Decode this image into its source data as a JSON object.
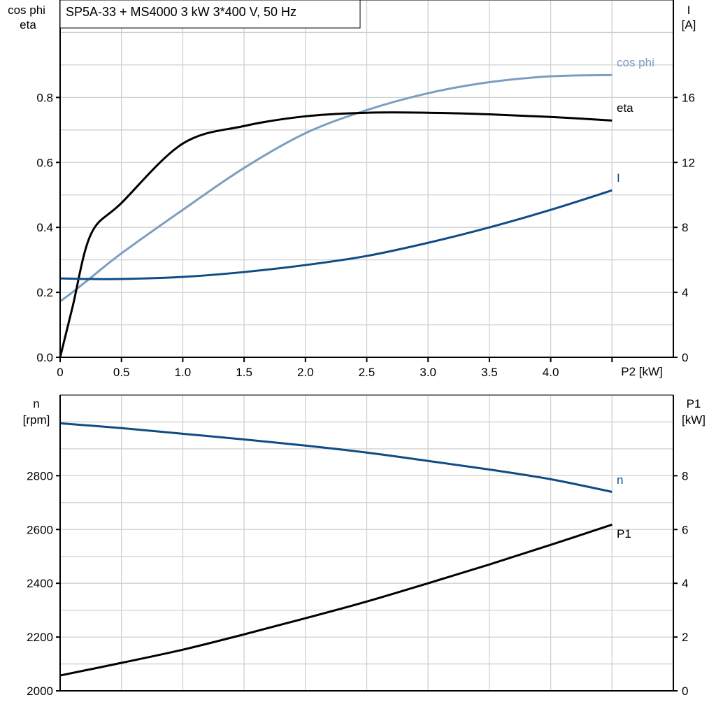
{
  "title": "SP5A-33 + MS4000   3 kW   3*400 V, 50 Hz",
  "chart_data": [
    {
      "type": "line",
      "xlabel": "P2 [kW]",
      "ylabel_left": [
        "cos phi",
        "eta"
      ],
      "ylabel_right": [
        "I",
        "[A]"
      ],
      "xlim": [
        0,
        5
      ],
      "ylim_left": [
        0,
        1.1
      ],
      "ylim_right": [
        0,
        22
      ],
      "x_ticks": [
        "0",
        "0.5",
        "1.0",
        "1.5",
        "2.0",
        "2.5",
        "3.0",
        "3.5",
        "4.0"
      ],
      "y_left_ticks": [
        "0.0",
        "0.2",
        "0.4",
        "0.6",
        "0.8"
      ],
      "y_right_ticks": [
        "0",
        "4",
        "8",
        "12",
        "16"
      ],
      "grid": true,
      "x": [
        0,
        0.1,
        0.25,
        0.5,
        1.0,
        1.5,
        2.0,
        2.5,
        3.0,
        3.5,
        4.0,
        4.5
      ],
      "series": [
        {
          "name": "cos phi",
          "axis": "left",
          "color": "#7b9ec1",
          "values": [
            0.172,
            0.2,
            0.245,
            0.32,
            0.454,
            0.583,
            0.69,
            0.761,
            0.813,
            0.847,
            0.865,
            0.869
          ]
        },
        {
          "name": "eta",
          "axis": "left",
          "color": "#000000",
          "values": [
            0.0,
            0.153,
            0.378,
            0.475,
            0.658,
            0.712,
            0.742,
            0.753,
            0.753,
            0.748,
            0.74,
            0.729
          ]
        },
        {
          "name": "I",
          "axis": "right",
          "color": "#0f4c85",
          "values": [
            4.86,
            4.84,
            4.82,
            4.82,
            4.95,
            5.25,
            5.68,
            6.24,
            7.05,
            8.0,
            9.08,
            10.28
          ]
        }
      ]
    },
    {
      "type": "line",
      "ylabel_left": [
        "n",
        "[rpm]"
      ],
      "ylabel_right": [
        "P1",
        "[kW]"
      ],
      "xlim": [
        0,
        5
      ],
      "ylim_left": [
        2000,
        3100
      ],
      "ylim_right": [
        0,
        11
      ],
      "y_left_ticks": [
        "2000",
        "2200",
        "2400",
        "2600",
        "2800"
      ],
      "y_right_ticks": [
        "0",
        "2",
        "4",
        "6",
        "8"
      ],
      "grid": true,
      "x": [
        0,
        0.5,
        1.0,
        1.5,
        2.0,
        2.5,
        3.0,
        3.5,
        4.0,
        4.5
      ],
      "series": [
        {
          "name": "n",
          "axis": "left",
          "color": "#0f4c85",
          "values": [
            2995,
            2977,
            2956,
            2935,
            2912,
            2886,
            2855,
            2823,
            2787,
            2740
          ]
        },
        {
          "name": "P1",
          "axis": "right",
          "color": "#000000",
          "values": [
            0.57,
            1.04,
            1.53,
            2.1,
            2.7,
            3.32,
            4.0,
            4.7,
            5.43,
            6.18
          ]
        }
      ]
    }
  ]
}
